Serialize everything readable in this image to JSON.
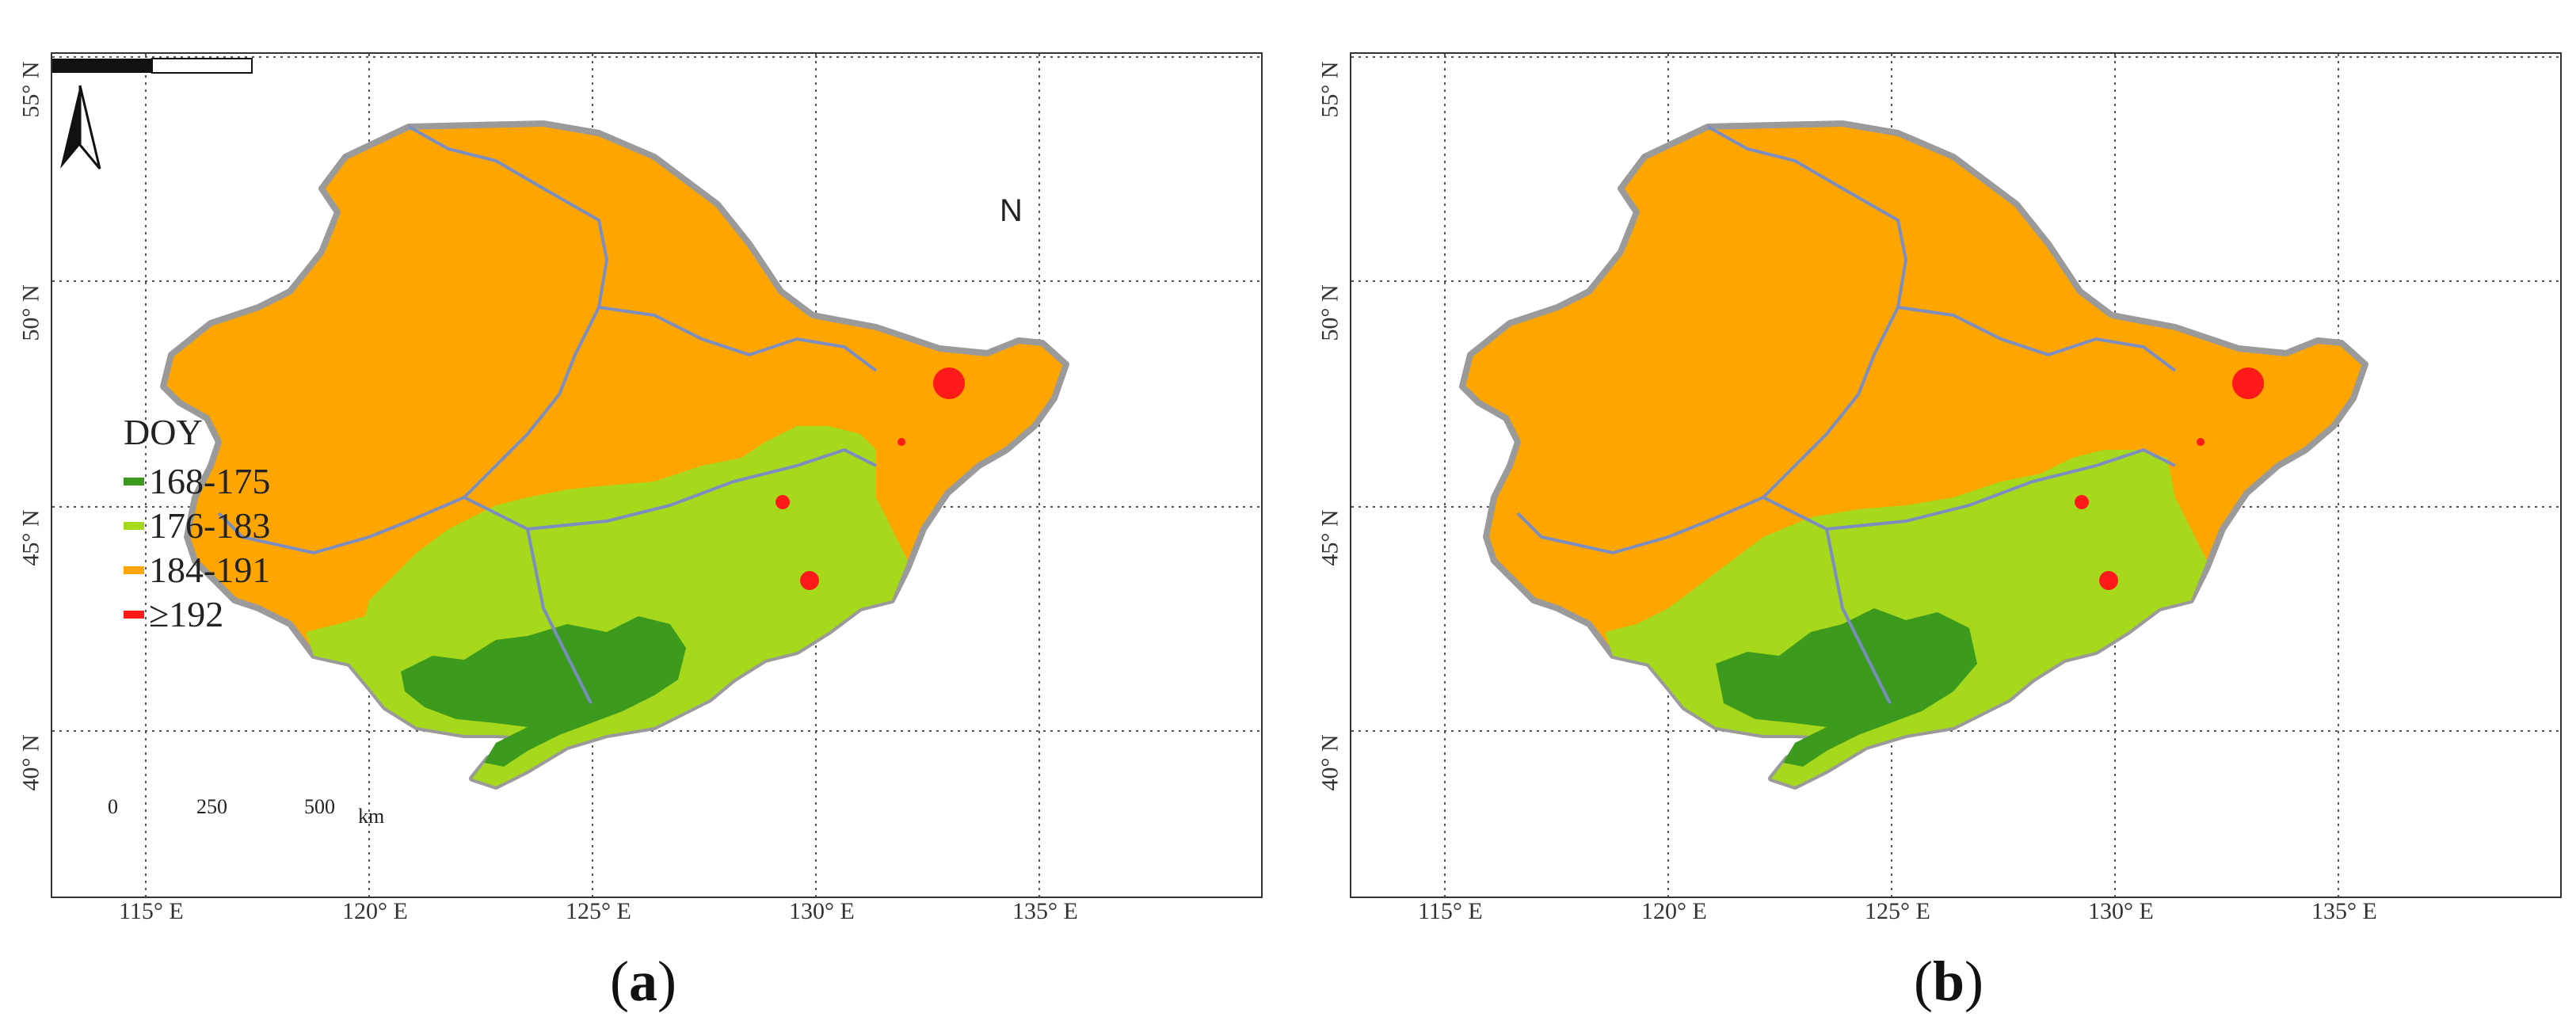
{
  "panels": [
    {
      "id": "a",
      "caption_open": "(",
      "caption_letter": "a",
      "caption_close": ")"
    },
    {
      "id": "b",
      "caption_open": "(",
      "caption_letter": "b",
      "caption_close": ")"
    }
  ],
  "axes": {
    "x_ticks": [
      "115° E",
      "120° E",
      "125° E",
      "130° E",
      "135° E"
    ],
    "y_ticks": [
      "55° N",
      "50° N",
      "45° N",
      "40° N"
    ]
  },
  "legend": {
    "title": "DOY",
    "items": [
      {
        "label": "168-175",
        "color": "#3c9a1c"
      },
      {
        "label": "176-183",
        "color": "#a6d81c"
      },
      {
        "label": "184-191",
        "color": "#ffa500"
      },
      {
        "label": "≥192",
        "color": "#ff1a1a"
      }
    ]
  },
  "north_arrow": {
    "label": "N"
  },
  "scale_bar": {
    "ticks": [
      "0",
      "250",
      "500"
    ],
    "unit": "km"
  },
  "colors": {
    "orange": "#ffa500",
    "light_green": "#a6d81c",
    "dark_green": "#3c9a1c",
    "red": "#ff1a1a",
    "province_border": "#7c8ec0",
    "outline": "#9a9a9a",
    "grid": "#555555"
  }
}
